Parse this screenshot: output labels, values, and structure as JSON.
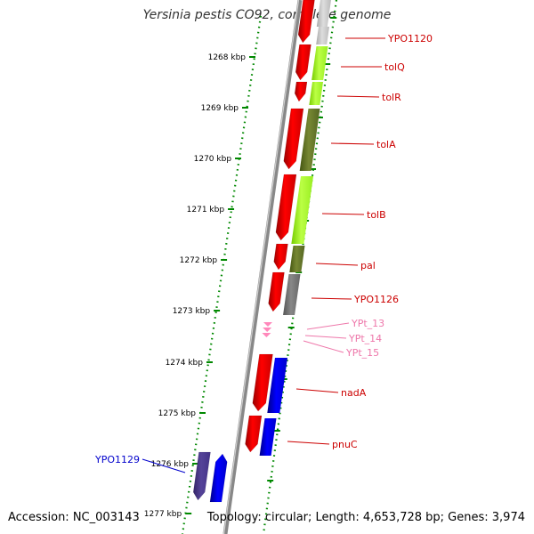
{
  "title": "Yersinia pestis CO92, complete genome",
  "accession": "Accession: NC_003143",
  "topology": "Topology: circular; Length: 4,653,728 bp; Genes: 3,974",
  "colors": {
    "cds_forward": "#ff0000",
    "cds_reverse": "#0000ff",
    "trna": "#ff88bb",
    "gene_label": "#cc0000",
    "trna_label": "#ee77aa",
    "highlight_label": "#0000cc",
    "tick": "#008800",
    "backbone": "#888888"
  },
  "ticks": [
    {
      "label": "1268 kbp"
    },
    {
      "label": "1269 kbp"
    },
    {
      "label": "1270 kbp"
    },
    {
      "label": "1271 kbp"
    },
    {
      "label": "1272 kbp"
    },
    {
      "label": "1273 kbp"
    },
    {
      "label": "1274 kbp"
    },
    {
      "label": "1275 kbp"
    },
    {
      "label": "1276 kbp"
    },
    {
      "label": "1277 kbp"
    }
  ],
  "labels": [
    {
      "text": "YPO1120",
      "kind": "gene"
    },
    {
      "text": "tolQ",
      "kind": "gene"
    },
    {
      "text": "tolR",
      "kind": "gene"
    },
    {
      "text": "tolA",
      "kind": "gene"
    },
    {
      "text": "tolB",
      "kind": "gene"
    },
    {
      "text": "pal",
      "kind": "gene"
    },
    {
      "text": "YPO1126",
      "kind": "gene"
    },
    {
      "text": "YPt_13",
      "kind": "trna"
    },
    {
      "text": "YPt_14",
      "kind": "trna"
    },
    {
      "text": "YPt_15",
      "kind": "trna"
    },
    {
      "text": "nadA",
      "kind": "gene"
    },
    {
      "text": "pnuC",
      "kind": "gene"
    },
    {
      "text": "YPO1129",
      "kind": "highlight"
    }
  ]
}
